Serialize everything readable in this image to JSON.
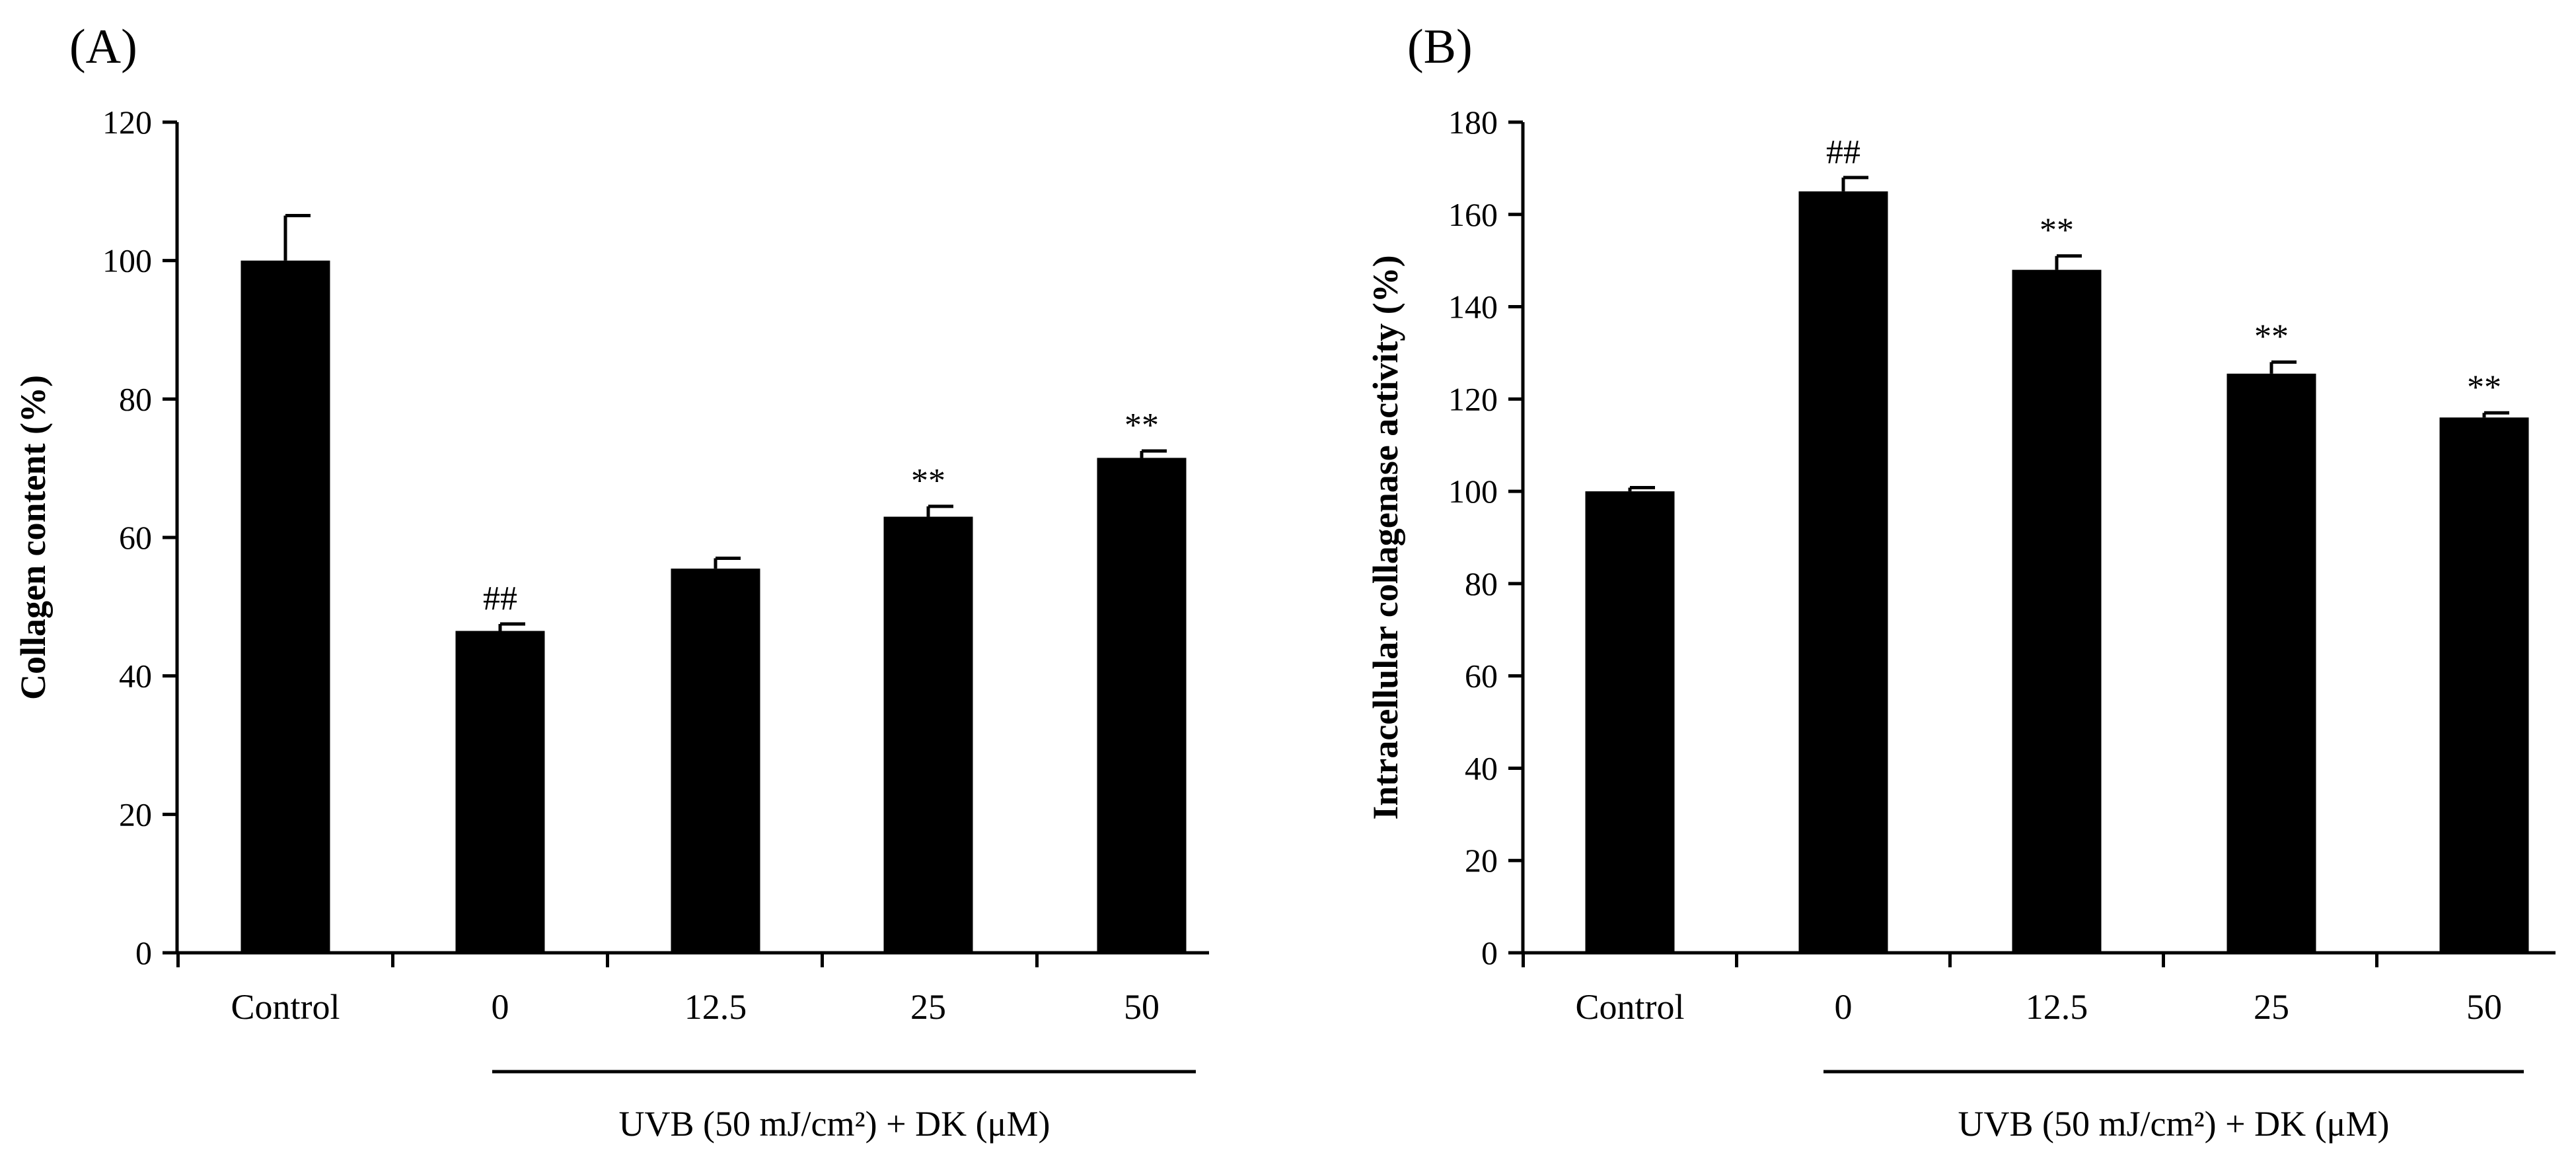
{
  "chart_data": [
    {
      "type": "bar",
      "panel_label": "(A)",
      "ylabel": "Collagen content (%)",
      "categories": [
        "Control",
        "0",
        "12.5",
        "25",
        "50"
      ],
      "values": [
        100,
        46.5,
        55.5,
        63,
        71.5
      ],
      "errors": [
        6.5,
        1.0,
        1.5,
        1.5,
        1.0
      ],
      "annotations": [
        "",
        "##",
        "",
        "**",
        "**"
      ],
      "ylim": [
        0,
        120
      ],
      "ytick_step": 20,
      "yticks": [
        "0",
        "20",
        "40",
        "60",
        "80",
        "100",
        "120"
      ],
      "group_label": "UVB (50 mJ/cm²)  + DK (μM)"
    },
    {
      "type": "bar",
      "panel_label": "(B)",
      "ylabel": "Intracellular collagenase activity (%)",
      "categories": [
        "Control",
        "0",
        "12.5",
        "25",
        "50"
      ],
      "values": [
        100,
        165,
        148,
        125.5,
        116
      ],
      "errors": [
        0.8,
        3.0,
        3.0,
        2.5,
        1.0
      ],
      "annotations": [
        "",
        "##",
        "**",
        "**",
        "**"
      ],
      "ylim": [
        0,
        180
      ],
      "ytick_step": 20,
      "yticks": [
        "0",
        "20",
        "40",
        "60",
        "80",
        "100",
        "120",
        "140",
        "160",
        "180"
      ],
      "group_label": "UVB (50 mJ/cm²)  + DK (μM)"
    }
  ]
}
